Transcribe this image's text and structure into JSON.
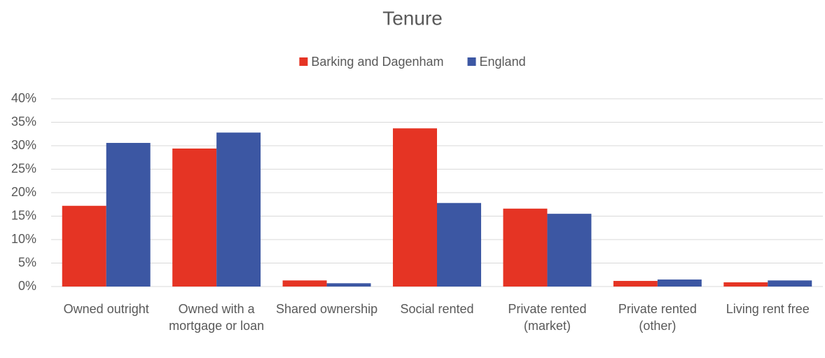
{
  "chart_data": {
    "type": "bar",
    "title": "Tenure",
    "categories": [
      "Owned outright",
      "Owned with a mortgage or loan",
      "Shared ownership",
      "Social rented",
      "Private rented (market)",
      "Private rented (other)",
      "Living rent free"
    ],
    "series": [
      {
        "name": "Barking and Dagenham",
        "color": "#e53424",
        "values": [
          17.2,
          29.4,
          1.3,
          33.7,
          16.6,
          1.2,
          0.9
        ]
      },
      {
        "name": "England",
        "color": "#3c57a3",
        "values": [
          30.6,
          32.8,
          0.7,
          17.8,
          15.5,
          1.5,
          1.3
        ]
      }
    ],
    "ylim": [
      0,
      40
    ],
    "yticks": [
      {
        "value": 0,
        "label": "0%"
      },
      {
        "value": 5,
        "label": "5%"
      },
      {
        "value": 10,
        "label": "10%"
      },
      {
        "value": 15,
        "label": "15%"
      },
      {
        "value": 20,
        "label": "20%"
      },
      {
        "value": 25,
        "label": "25%"
      },
      {
        "value": 30,
        "label": "30%"
      },
      {
        "value": 35,
        "label": "35%"
      },
      {
        "value": 40,
        "label": "40%"
      }
    ],
    "grid": true,
    "legend": "top"
  }
}
